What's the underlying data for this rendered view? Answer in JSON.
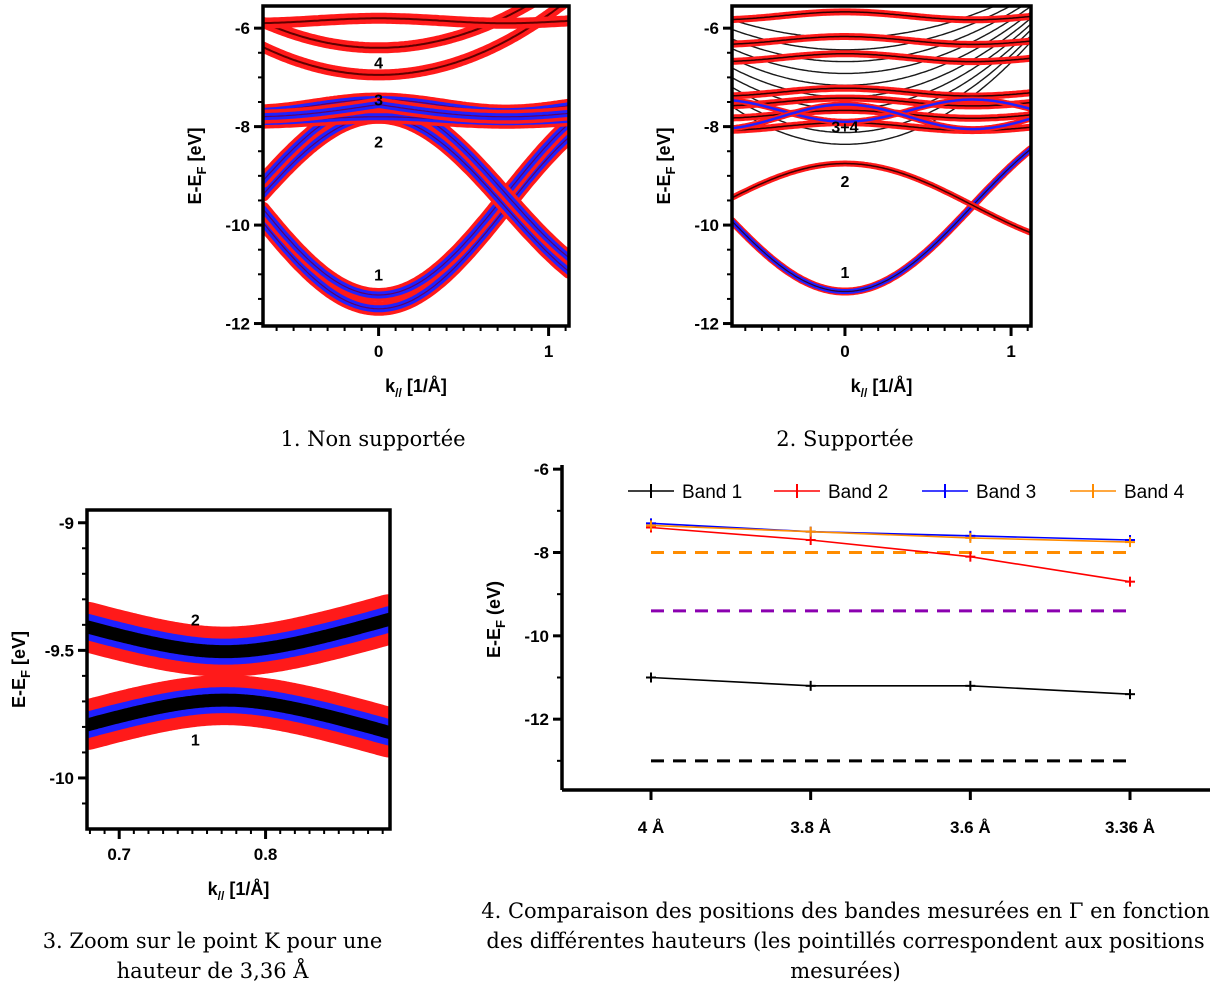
{
  "chart_data": [
    {
      "id": "p1",
      "type": "line",
      "caption": "1. Non supportée",
      "ylabel_main": "E-E",
      "ylabel_sub": "F",
      "ylabel_unit": " [eV]",
      "xlabel_main": "k",
      "xlabel_sub": "//",
      "xlabel_unit": " [1/Å]",
      "xlim": [
        -0.68,
        1.12
      ],
      "ylim": [
        -12.05,
        -5.55
      ],
      "xticks": [
        0,
        1
      ],
      "xtick_labels": [
        "0",
        "1"
      ],
      "yticks": [
        -12,
        -10,
        -8,
        -6
      ],
      "ytick_labels": [
        "-12",
        "-10",
        "-8",
        "-6"
      ],
      "band_labels": [
        {
          "text": "4",
          "x": 0.0,
          "y": -6.7
        },
        {
          "text": "3",
          "x": 0.0,
          "y": -7.45
        },
        {
          "text": "2",
          "x": 0.0,
          "y": -8.3
        },
        {
          "text": "1",
          "x": 0.0,
          "y": -11.0
        }
      ]
    },
    {
      "id": "p2",
      "type": "line",
      "caption": "2. Supportée",
      "ylabel_main": "E-E",
      "ylabel_sub": "F",
      "ylabel_unit": " [eV]",
      "xlabel_main": "k",
      "xlabel_sub": "//",
      "xlabel_unit": " [1/Å]",
      "xlim": [
        -0.68,
        1.12
      ],
      "ylim": [
        -12.05,
        -5.55
      ],
      "xticks": [
        0,
        1
      ],
      "xtick_labels": [
        "0",
        "1"
      ],
      "yticks": [
        -12,
        -10,
        -8,
        -6
      ],
      "ytick_labels": [
        "-12",
        "-10",
        "-8",
        "-6"
      ],
      "band_labels": [
        {
          "text": "3+4",
          "x": 0.0,
          "y": -8.0
        },
        {
          "text": "2",
          "x": 0.0,
          "y": -9.1
        },
        {
          "text": "1",
          "x": 0.0,
          "y": -10.95
        }
      ]
    },
    {
      "id": "p3",
      "type": "line",
      "caption": "3. Zoom sur le point K pour une hauteur de 3,36 Å",
      "ylabel_main": "E-E",
      "ylabel_sub": "F",
      "ylabel_unit": " [eV]",
      "xlabel_main": "k",
      "xlabel_sub": "//",
      "xlabel_unit": " [1/Å]",
      "xlim": [
        0.678,
        0.885
      ],
      "ylim": [
        -10.2,
        -8.95
      ],
      "xticks": [
        0.7,
        0.8
      ],
      "xtick_labels": [
        "0.7",
        "0.8"
      ],
      "yticks": [
        -10,
        -9.5,
        -9
      ],
      "ytick_labels": [
        "-10",
        "-9.5",
        "-9"
      ],
      "band_labels": [
        {
          "text": "2",
          "x": 0.752,
          "y": -9.38
        },
        {
          "text": "1",
          "x": 0.752,
          "y": -9.85
        }
      ]
    },
    {
      "id": "p4",
      "type": "line",
      "caption": "4. Comparaison des positions des bandes mesurées en Γ en fonction des différentes hauteurs (les pointillés correspondent aux positions mesurées)",
      "ylabel_main": "E-E",
      "ylabel_sub": "F",
      "ylabel_unit": " (eV)",
      "categories": [
        "4 Å",
        "3.8 Å",
        "3.6 Å",
        "3.36 Å"
      ],
      "ylim": [
        -13.7,
        -5.9
      ],
      "yticks": [
        -12,
        -10,
        -8,
        -6
      ],
      "ytick_labels": [
        "-12",
        "-10",
        "-8",
        "-6"
      ],
      "series": [
        {
          "name": "Band 1",
          "color": "#000000",
          "values": [
            -11.0,
            -11.2,
            -11.2,
            -11.4
          ]
        },
        {
          "name": "Band 2",
          "color": "#ff0000",
          "values": [
            -7.4,
            -7.7,
            -8.1,
            -8.7
          ]
        },
        {
          "name": "Band 3",
          "color": "#0000ff",
          "values": [
            -7.3,
            -7.5,
            -7.6,
            -7.7
          ]
        },
        {
          "name": "Band 4",
          "color": "#ff8c00",
          "values": [
            -7.35,
            -7.5,
            -7.65,
            -7.75
          ]
        }
      ],
      "reference_lines": [
        {
          "y": -8.0,
          "color": "#ff8c00"
        },
        {
          "y": -9.4,
          "color": "#8b00b0"
        },
        {
          "y": -13.0,
          "color": "#000000"
        }
      ],
      "legend_position": "top"
    }
  ]
}
